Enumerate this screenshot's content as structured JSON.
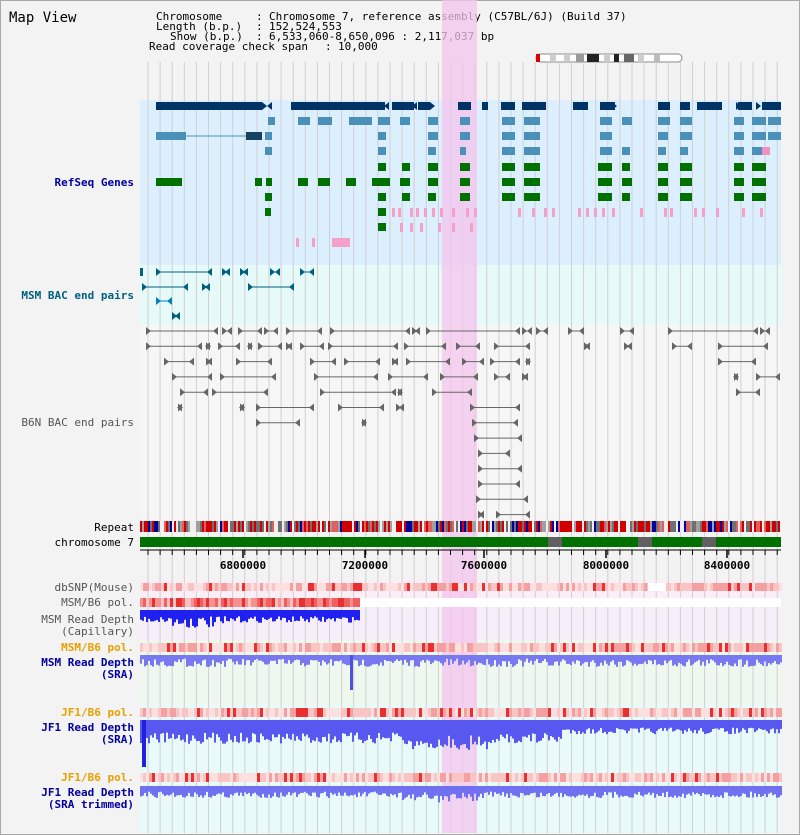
{
  "window": {
    "title": "Map View"
  },
  "info": {
    "chromosome_label": "Chromosome",
    "chromosome_value": "Chromosome 7, reference assembly (C57BL/6J) (Build 37)",
    "length_label": "Length (b.p.)",
    "length_value": "152,524,553",
    "show_label": "Show (b.p.)",
    "show_value": "6,533,060-8,650,096 : 2,117,037 bp",
    "coverage_label": "Read coverage check span",
    "coverage_value": "10,000"
  },
  "tracks": {
    "refseq": "RefSeq Genes",
    "msm_bac": "MSM BAC end pairs",
    "b6n_bac": "B6N BAC end pairs",
    "repeat": "Repeat",
    "chromosome": "chromosome 7",
    "dbsnp": "dbSNP(Mouse)",
    "msm_b6_pol_1": "MSM/B6 pol.",
    "msm_depth_cap_1": "MSM Read Depth",
    "msm_depth_cap_2": "(Capillary)",
    "msm_b6_pol_2": "MSM/B6 pol.",
    "msm_depth_sra_1": "MSM Read Depth",
    "msm_depth_sra_2": "(SRA)",
    "jf1_b6_pol_1": "JF1/B6 pol.",
    "jf1_depth_sra_1": "JF1 Read Depth",
    "jf1_depth_sra_2": "(SRA)",
    "jf1_b6_pol_2": "JF1/B6 pol.",
    "jf1_depth_trim_1": "JF1 Read Depth",
    "jf1_depth_trim_2": "(SRA trimmed)"
  },
  "axis": {
    "ticks": [
      "6800000",
      "7200000",
      "7600000",
      "8000000",
      "8400000"
    ]
  },
  "colors": {
    "refseq_bg": "#dcefff",
    "bac_bg": "#e6fafa",
    "highlight": "#f4c4ee",
    "chrom_green": "#007000",
    "dark_gene": "#003366",
    "mid_gene": "#4a90b8",
    "green_gene": "#007000"
  }
}
